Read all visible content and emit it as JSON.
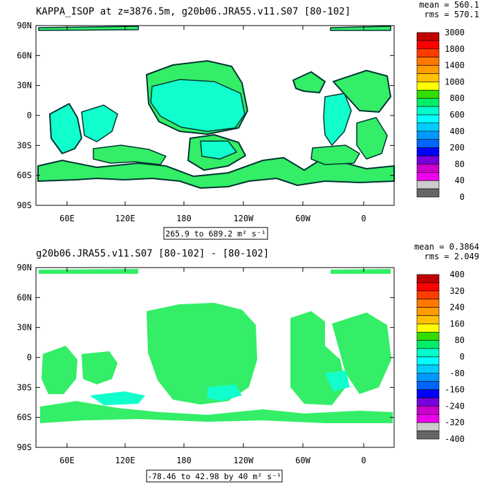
{
  "chart_data": [
    {
      "type": "heatmap",
      "title": "KAPPA_ISOP at z=3876.5m, g20b06.JRA55.v11.S07 [80-102]",
      "stats": [
        "mean = 560.1",
        "rms = 570.1"
      ],
      "range_label": "265.9 to 689.2 m² s⁻¹",
      "x_ticks": [
        "60E",
        "120E",
        "180",
        "120W",
        "60W",
        "0"
      ],
      "y_ticks": [
        "90N",
        "60N",
        "30N",
        "0",
        "30S",
        "60S",
        "90S"
      ],
      "colorbar": {
        "labels": [
          "3000",
          "1800",
          "1400",
          "1000",
          "800",
          "600",
          "400",
          "200",
          "80",
          "40",
          "0"
        ],
        "colors": [
          "#c00000",
          "#ff0000",
          "#ff3c00",
          "#ff7800",
          "#ff9c00",
          "#ffc000",
          "#ffff00",
          "#33dd00",
          "#00ee66",
          "#00ffcc",
          "#00ffff",
          "#00ccff",
          "#0099ff",
          "#0066ff",
          "#0000ff",
          "#7700dd",
          "#cc00cc",
          "#ee00ee",
          "#cccccc",
          "#666666"
        ]
      },
      "dominant_value_range": [
        400,
        800
      ]
    },
    {
      "type": "heatmap",
      "title": "g20b06.JRA55.v11.S07 [80-102] -  [80-102]",
      "stats": [
        "mean = 0.3864",
        "rms = 2.049"
      ],
      "range_label": "-78.46 to 42.98 by 40 m² s⁻¹",
      "x_ticks": [
        "60E",
        "120E",
        "180",
        "120W",
        "60W",
        "0"
      ],
      "y_ticks": [
        "90N",
        "60N",
        "30N",
        "0",
        "30S",
        "60S",
        "90S"
      ],
      "colorbar": {
        "labels": [
          "400",
          "320",
          "240",
          "160",
          "80",
          "0",
          "-80",
          "-160",
          "-240",
          "-320",
          "-400"
        ],
        "colors": [
          "#c00000",
          "#ff0000",
          "#ff3c00",
          "#ff7800",
          "#ff9c00",
          "#ffc000",
          "#ffff00",
          "#33dd00",
          "#00ee66",
          "#00ffcc",
          "#00ffff",
          "#00ccff",
          "#0099ff",
          "#0066ff",
          "#0000ff",
          "#7700dd",
          "#cc00cc",
          "#ee00ee",
          "#cccccc",
          "#666666"
        ]
      },
      "dominant_value_range": [
        0,
        40
      ]
    }
  ]
}
